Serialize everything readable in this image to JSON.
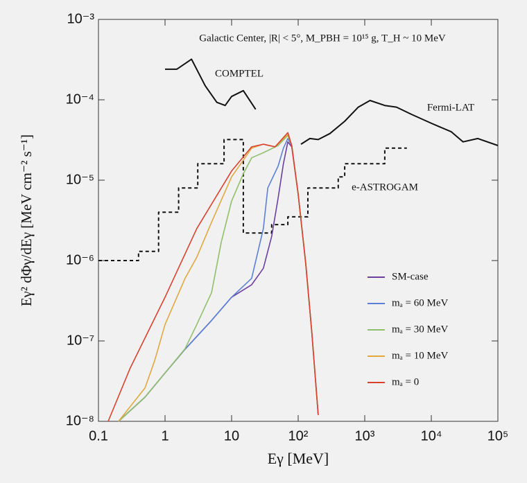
{
  "chart_data": {
    "type": "line",
    "annotation": "Galactic Center, |R| < 5°, M_PBH = 10¹⁵ g, T_H ~ 10 MeV",
    "xlabel": "Eγ [MeV]",
    "ylabel": "Eγ² dΦγ/dEγ [MeV cm⁻² s⁻¹]",
    "xscale": "log",
    "yscale": "log",
    "xlim": [
      0.1,
      100000
    ],
    "ylim": [
      1e-08,
      0.001
    ],
    "xticks": [
      0.1,
      1,
      10,
      {
        "value": 100,
        "label": "10²"
      },
      {
        "value": 1000,
        "label": "10³"
      },
      {
        "value": 10000,
        "label": "10⁴"
      },
      {
        "value": 100000,
        "label": "10⁵"
      }
    ],
    "yticks": [
      {
        "value": 1e-08,
        "label": "10⁻⁸"
      },
      {
        "value": 1e-07,
        "label": "10⁻⁷"
      },
      {
        "value": 1e-06,
        "label": "10⁻⁶"
      },
      {
        "value": 1e-05,
        "label": "10⁻⁵"
      },
      {
        "value": 0.0001,
        "label": "10⁻⁴"
      },
      {
        "value": 0.001,
        "label": "10⁻³"
      }
    ],
    "series": [
      {
        "name": "SM-case",
        "color": "#6b3fa0",
        "x": [
          0.2,
          0.5,
          1,
          2,
          5,
          10,
          20,
          30,
          40,
          50,
          60,
          70,
          80,
          100,
          130,
          160,
          200
        ],
        "values": [
          1e-08,
          2e-08,
          4e-08,
          7.9e-08,
          1.8e-07,
          3.5e-07,
          5e-07,
          8e-07,
          2e-06,
          6e-06,
          1.6e-05,
          3e-05,
          2.6e-05,
          6.7e-06,
          9.2e-07,
          1.3e-07,
          1.2e-08
        ]
      },
      {
        "name": "mₐ = 60 MeV",
        "color": "#5b7fd4",
        "x": [
          0.2,
          0.5,
          1,
          2,
          5,
          10,
          20,
          30,
          35,
          50,
          60,
          70,
          80,
          100,
          130,
          160,
          200
        ],
        "values": [
          1e-08,
          2e-08,
          4e-08,
          7.9e-08,
          1.8e-07,
          3.5e-07,
          6e-07,
          2.5e-06,
          8e-06,
          1.5e-05,
          2.5e-05,
          3.3e-05,
          2.7e-05,
          6.7e-06,
          9.2e-07,
          1.3e-07,
          1.2e-08
        ]
      },
      {
        "name": "mₐ = 30 MeV",
        "color": "#8fbf6a",
        "x": [
          0.2,
          0.5,
          1,
          2,
          3,
          5,
          7,
          10,
          15,
          20,
          30,
          50,
          70,
          80,
          100,
          130,
          160,
          200
        ],
        "values": [
          1e-08,
          2e-08,
          4e-08,
          8e-08,
          1.6e-07,
          4e-07,
          1.7e-06,
          5.5e-06,
          1.2e-05,
          1.9e-05,
          2.2e-05,
          2.7e-05,
          3.6e-05,
          2.7e-05,
          6.7e-06,
          9.2e-07,
          1.3e-07,
          1.2e-08
        ]
      },
      {
        "name": "mₐ = 10 MeV",
        "color": "#e0a83f",
        "x": [
          0.2,
          0.5,
          0.7,
          1,
          2,
          3,
          5,
          10,
          20,
          30,
          45,
          70,
          80,
          100,
          130,
          160,
          200
        ],
        "values": [
          1e-08,
          2.6e-08,
          5.7e-08,
          1.6e-07,
          6e-07,
          1.1e-06,
          3e-06,
          1.1e-05,
          2.5e-05,
          2.8e-05,
          2.6e-05,
          3.7e-05,
          2.7e-05,
          6.7e-06,
          9.2e-07,
          1.3e-07,
          1.2e-08
        ]
      },
      {
        "name": "mₐ = 0",
        "color": "#d9412f",
        "x": [
          0.14,
          0.3,
          1,
          3,
          10,
          20,
          30,
          45,
          70,
          80,
          100,
          130,
          160,
          200
        ],
        "values": [
          1e-08,
          4.6e-08,
          3.5e-07,
          2.5e-06,
          1.3e-05,
          2.6e-05,
          2.8e-05,
          2.6e-05,
          3.9e-05,
          2.7e-05,
          6.7e-06,
          9.2e-07,
          1.3e-07,
          1.2e-08
        ]
      }
    ],
    "observations": [
      {
        "name": "COMPTEL",
        "color": "#111111",
        "dashed": false,
        "x": [
          1,
          1.5,
          2.5,
          4,
          6,
          8,
          10,
          15,
          23
        ],
        "values": [
          0.00024,
          0.00024,
          0.00032,
          0.00015,
          9.3e-05,
          8.5e-05,
          0.00011,
          0.00013,
          7.6e-05
        ]
      },
      {
        "name": "Fermi-LAT",
        "color": "#111111",
        "dashed": false,
        "x": [
          110,
          150,
          200,
          300,
          500,
          800,
          1200,
          2000,
          3000,
          5000,
          10000,
          20000,
          30000,
          50000,
          100000
        ],
        "values": [
          2.8e-05,
          3.3e-05,
          3.2e-05,
          3.8e-05,
          5.4e-05,
          8.1e-05,
          9.8e-05,
          8.5e-05,
          8.1e-05,
          6.6e-05,
          5.1e-05,
          4e-05,
          3e-05,
          3.3e-05,
          2.7e-05
        ]
      },
      {
        "name": "e-ASTROGAM",
        "color": "#111111",
        "dashed": true,
        "x": [
          0.1,
          0.4,
          0.4,
          0.8,
          0.8,
          1.6,
          1.6,
          3.1,
          3.1,
          7.7,
          7.7,
          15,
          15,
          40,
          40,
          70,
          70,
          140,
          140,
          400,
          400,
          500,
          500,
          2000,
          2000,
          4300
        ],
        "values": [
          1e-06,
          1e-06,
          1.3e-06,
          1.3e-06,
          4e-06,
          4e-06,
          8e-06,
          8e-06,
          1.6e-05,
          1.6e-05,
          3.2e-05,
          3.2e-05,
          2.2e-06,
          2.2e-06,
          2.8e-06,
          2.8e-06,
          3.5e-06,
          3.5e-06,
          8e-06,
          8e-06,
          1.1e-05,
          1.1e-05,
          1.6e-05,
          1.6e-05,
          2.5e-05,
          2.5e-05
        ]
      }
    ]
  }
}
